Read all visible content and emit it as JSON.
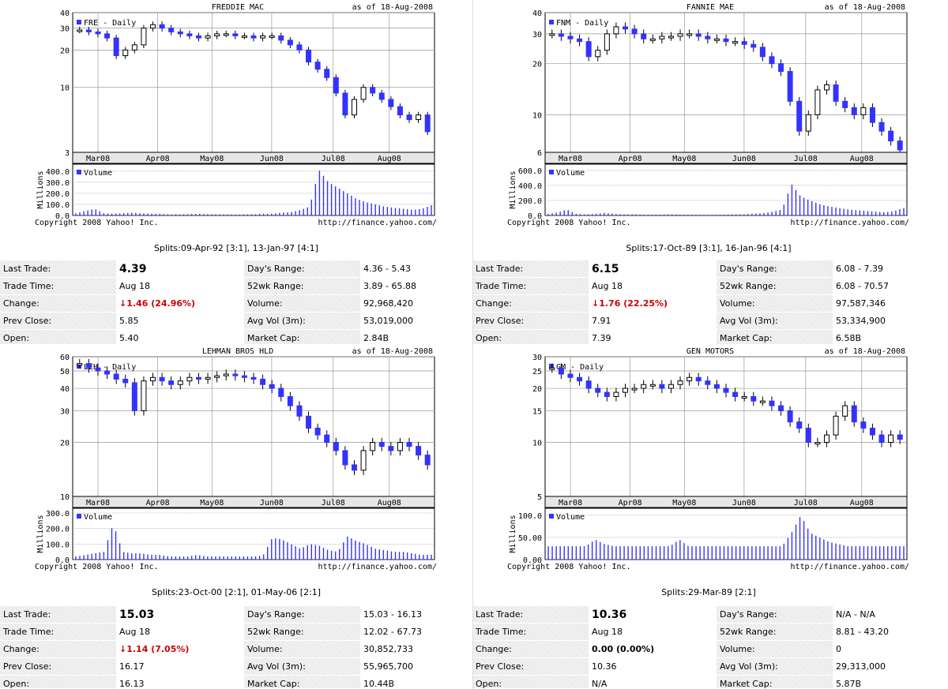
{
  "panels": [
    {
      "title": "FREDDIE MAC",
      "asof": "as of 18-Aug-2008",
      "legend": "FRE - Daily",
      "volume_label": "Volume",
      "volume_axis": "Millions",
      "copyright": "Copyright 2008 Yahoo! Inc.",
      "source": "http://finance.yahoo.com/",
      "splits": "Splits:09-Apr-92 [3:1], 13-Jan-97 [4:1]",
      "price_ticks": [
        "40",
        "30",
        "20",
        "10",
        "3"
      ],
      "vol_ticks": [
        "400.0",
        "300.0",
        "200.0",
        "100.0",
        "0.0"
      ],
      "months": [
        "Mar08",
        "Apr08",
        "May08",
        "Jun08",
        "Jul08",
        "Aug08"
      ],
      "quote": {
        "last_trade_label": "Last Trade:",
        "last_trade": "4.39",
        "trade_time_label": "Trade Time:",
        "trade_time": "Aug 18",
        "change_label": "Change:",
        "change": "1.46 (24.96%)",
        "change_dir": "down",
        "prev_close_label": "Prev Close:",
        "prev_close": "5.85",
        "open_label": "Open:",
        "open": "5.40",
        "days_range_label": "Day's Range:",
        "days_range": "4.36 - 5.43",
        "wk52_label": "52wk Range:",
        "wk52": "3.89 - 65.88",
        "volume_label": "Volume:",
        "volume": "92,968,420",
        "avgvol_label": "Avg Vol (3m):",
        "avgvol": "53,019,000",
        "mcap_label": "Market Cap:",
        "mcap": "2.84B"
      }
    },
    {
      "title": "FANNIE MAE",
      "asof": "as of 18-Aug-2008",
      "legend": "FNM - Daily",
      "volume_label": "Volume",
      "volume_axis": "Millions",
      "copyright": "Copyright 2008 Yahoo! Inc.",
      "source": "http://finance.yahoo.com/",
      "splits": "Splits:17-Oct-89 [3:1], 16-Jan-96 [4:1]",
      "price_ticks": [
        "40",
        "30",
        "20",
        "10",
        "6"
      ],
      "vol_ticks": [
        "600.0",
        "400.0",
        "200.0",
        "0.0"
      ],
      "months": [
        "Mar08",
        "Apr08",
        "May08",
        "Jun08",
        "Jul08",
        "Aug08"
      ],
      "quote": {
        "last_trade_label": "Last Trade:",
        "last_trade": "6.15",
        "trade_time_label": "Trade Time:",
        "trade_time": "Aug 18",
        "change_label": "Change:",
        "change": "1.76 (22.25%)",
        "change_dir": "down",
        "prev_close_label": "Prev Close:",
        "prev_close": "7.91",
        "open_label": "Open:",
        "open": "7.39",
        "days_range_label": "Day's Range:",
        "days_range": "6.08 - 7.39",
        "wk52_label": "52wk Range:",
        "wk52": "6.08 - 70.57",
        "volume_label": "Volume:",
        "volume": "97,587,346",
        "avgvol_label": "Avg Vol (3m):",
        "avgvol": "53,334,900",
        "mcap_label": "Market Cap:",
        "mcap": "6.58B"
      }
    },
    {
      "title": "LEHMAN BROS HLD",
      "asof": "as of 18-Aug-2008",
      "legend": "LEH - Daily",
      "volume_label": "Volume",
      "volume_axis": "Millions",
      "copyright": "Copyright 2008 Yahoo! Inc.",
      "source": "http://finance.yahoo.com/",
      "splits": "Splits:23-Oct-00 [2:1], 01-May-06 [2:1]",
      "price_ticks": [
        "60",
        "50",
        "40",
        "30",
        "20",
        "10"
      ],
      "vol_ticks": [
        "300.0",
        "200.0",
        "100.0",
        "0.0"
      ],
      "months": [
        "Mar08",
        "Apr08",
        "May08",
        "Jun08",
        "Jul08",
        "Aug08"
      ],
      "quote": {
        "last_trade_label": "Last Trade:",
        "last_trade": "15.03",
        "trade_time_label": "Trade Time:",
        "trade_time": "Aug 18",
        "change_label": "Change:",
        "change": "1.14 (7.05%)",
        "change_dir": "down",
        "prev_close_label": "Prev Close:",
        "prev_close": "16.17",
        "open_label": "Open:",
        "open": "16.13",
        "days_range_label": "Day's Range:",
        "days_range": "15.03 - 16.13",
        "wk52_label": "52wk Range:",
        "wk52": "12.02 - 67.73",
        "volume_label": "Volume:",
        "volume": "30,852,733",
        "avgvol_label": "Avg Vol (3m):",
        "avgvol": "55,965,700",
        "mcap_label": "Market Cap:",
        "mcap": "10.44B"
      }
    },
    {
      "title": "GEN MOTORS",
      "asof": "as of 18-Aug-2008",
      "legend": "GM - Daily",
      "volume_label": "Volume",
      "volume_axis": "Millions",
      "copyright": "Copyright 2008 Yahoo! Inc.",
      "source": "http://finance.yahoo.com/",
      "splits": "Splits:29-Mar-89 [2:1]",
      "price_ticks": [
        "30",
        "25",
        "20",
        "15",
        "10",
        "5"
      ],
      "vol_ticks": [
        "100.0",
        "50.00",
        "0.00"
      ],
      "months": [
        "Mar08",
        "Apr08",
        "May08",
        "Jun08",
        "Jul08",
        "Aug08"
      ],
      "quote": {
        "last_trade_label": "Last Trade:",
        "last_trade": "10.36",
        "trade_time_label": "Trade Time:",
        "trade_time": "Aug 18",
        "change_label": "Change:",
        "change": "0.00 (0.00%)",
        "change_dir": "flat",
        "prev_close_label": "Prev Close:",
        "prev_close": "10.36",
        "open_label": "Open:",
        "open": "N/A",
        "days_range_label": "Day's Range:",
        "days_range": "N/A - N/A",
        "wk52_label": "52wk Range:",
        "wk52": "8.81 - 43.20",
        "volume_label": "Volume:",
        "volume": "0",
        "avgvol_label": "Avg Vol (3m):",
        "avgvol": "29,313,000",
        "mcap_label": "Market Cap:",
        "mcap": "5.87B"
      }
    }
  ],
  "chart_data": [
    {
      "type": "candlestick",
      "title": "FREDDIE MAC",
      "ylim": [
        3,
        40
      ],
      "ylog": true,
      "series_price": [
        29,
        28,
        27,
        25,
        18,
        20,
        22,
        30,
        32,
        30,
        28,
        27,
        26,
        25,
        26,
        27,
        27,
        26,
        26,
        25,
        26,
        26,
        24,
        22,
        20,
        16,
        14,
        12,
        9,
        6,
        8,
        10,
        9,
        8,
        7,
        6,
        5.5,
        6,
        4.4
      ],
      "series_volume": [
        20,
        40,
        60,
        20,
        15,
        20,
        25,
        20,
        15,
        15,
        10,
        10,
        12,
        15,
        12,
        10,
        10,
        8,
        10,
        10,
        15,
        15,
        25,
        30,
        50,
        80,
        410,
        300,
        250,
        200,
        150,
        120,
        100,
        80,
        70,
        60,
        50,
        60,
        92
      ],
      "vol_max": 420
    },
    {
      "type": "candlestick",
      "title": "FANNIE MAE",
      "ylim": [
        6,
        40
      ],
      "ylog": true,
      "series_price": [
        30,
        29,
        28,
        27,
        22,
        24,
        30,
        33,
        32,
        30,
        28,
        28,
        29,
        29,
        30,
        30,
        29,
        28,
        28,
        27,
        27,
        26,
        25,
        22,
        20,
        18,
        12,
        8,
        10,
        14,
        15,
        12,
        11,
        10,
        11,
        9,
        8,
        7,
        6.2
      ],
      "series_volume": [
        20,
        40,
        80,
        20,
        15,
        20,
        35,
        20,
        15,
        15,
        12,
        10,
        12,
        15,
        12,
        10,
        10,
        8,
        10,
        10,
        15,
        15,
        25,
        30,
        50,
        80,
        420,
        250,
        200,
        150,
        120,
        100,
        80,
        70,
        60,
        50,
        40,
        60,
        98
      ],
      "vol_max": 620
    },
    {
      "type": "candlestick",
      "title": "LEHMAN BROS HLD",
      "ylim": [
        10,
        60
      ],
      "ylog": true,
      "series_price": [
        55,
        52,
        50,
        48,
        45,
        43,
        30,
        44,
        46,
        44,
        42,
        44,
        46,
        45,
        46,
        47,
        48,
        47,
        46,
        45,
        42,
        40,
        36,
        32,
        28,
        24,
        22,
        20,
        18,
        15,
        14,
        18,
        20,
        19,
        18,
        20,
        19,
        17,
        15
      ],
      "series_volume": [
        20,
        30,
        40,
        50,
        230,
        50,
        40,
        40,
        30,
        30,
        20,
        20,
        20,
        30,
        20,
        20,
        20,
        20,
        20,
        20,
        25,
        140,
        130,
        100,
        70,
        100,
        90,
        60,
        50,
        150,
        120,
        100,
        70,
        60,
        50,
        50,
        40,
        30,
        31
      ],
      "vol_max": 300
    },
    {
      "type": "candlestick",
      "title": "GEN MOTORS",
      "ylim": [
        5,
        30
      ],
      "ylog": true,
      "series_price": [
        26,
        24,
        23,
        22,
        20,
        19,
        18,
        19,
        20,
        20,
        21,
        21,
        20,
        21,
        22,
        23,
        22,
        21,
        20,
        19,
        18,
        18,
        17,
        17,
        16,
        15,
        13,
        12,
        10,
        10,
        11,
        14,
        16,
        13,
        12,
        11,
        10,
        11,
        10.4
      ],
      "series_volume": [
        30,
        30,
        30,
        30,
        30,
        45,
        35,
        30,
        30,
        30,
        30,
        30,
        30,
        30,
        45,
        30,
        30,
        30,
        30,
        30,
        30,
        30,
        30,
        30,
        30,
        30,
        60,
        100,
        60,
        50,
        40,
        35,
        30,
        30,
        30,
        30,
        30,
        30,
        30
      ],
      "vol_max": 105
    }
  ]
}
